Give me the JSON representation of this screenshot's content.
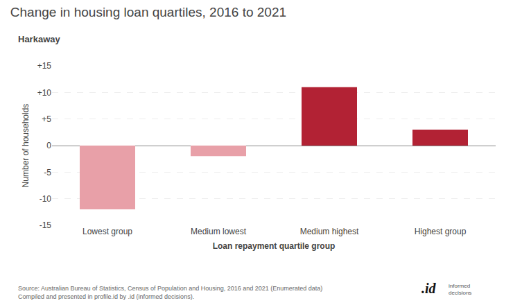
{
  "chart_data": {
    "type": "bar",
    "title": "Change in housing loan quartiles, 2016 to 2021",
    "subtitle": "Harkaway",
    "categories": [
      "Lowest group",
      "Medium lowest",
      "Medium highest",
      "Highest group"
    ],
    "values": [
      -12,
      -2,
      11,
      3
    ],
    "colors": [
      "#E8A0A8",
      "#E8A0A8",
      "#B22234",
      "#B22234"
    ],
    "xlabel": "Loan repayment quartile group",
    "ylabel": "Number of households",
    "ylim": [
      -15,
      15
    ],
    "yticks": [
      -15,
      -10,
      -5,
      0,
      {
        "value": 5,
        "label": "+5"
      },
      {
        "value": 10,
        "label": "+10"
      },
      {
        "value": 15,
        "label": "+15"
      }
    ],
    "grid": true,
    "annotations": [
      "Source: Australian Bureau of Statistics, Census of Population and Housing, 2016 and 2021 (Enumerated data)\nCompiled and presented in profile.id by .id (informed decisions).",
      ".id",
      "informed\ndecisions"
    ]
  }
}
